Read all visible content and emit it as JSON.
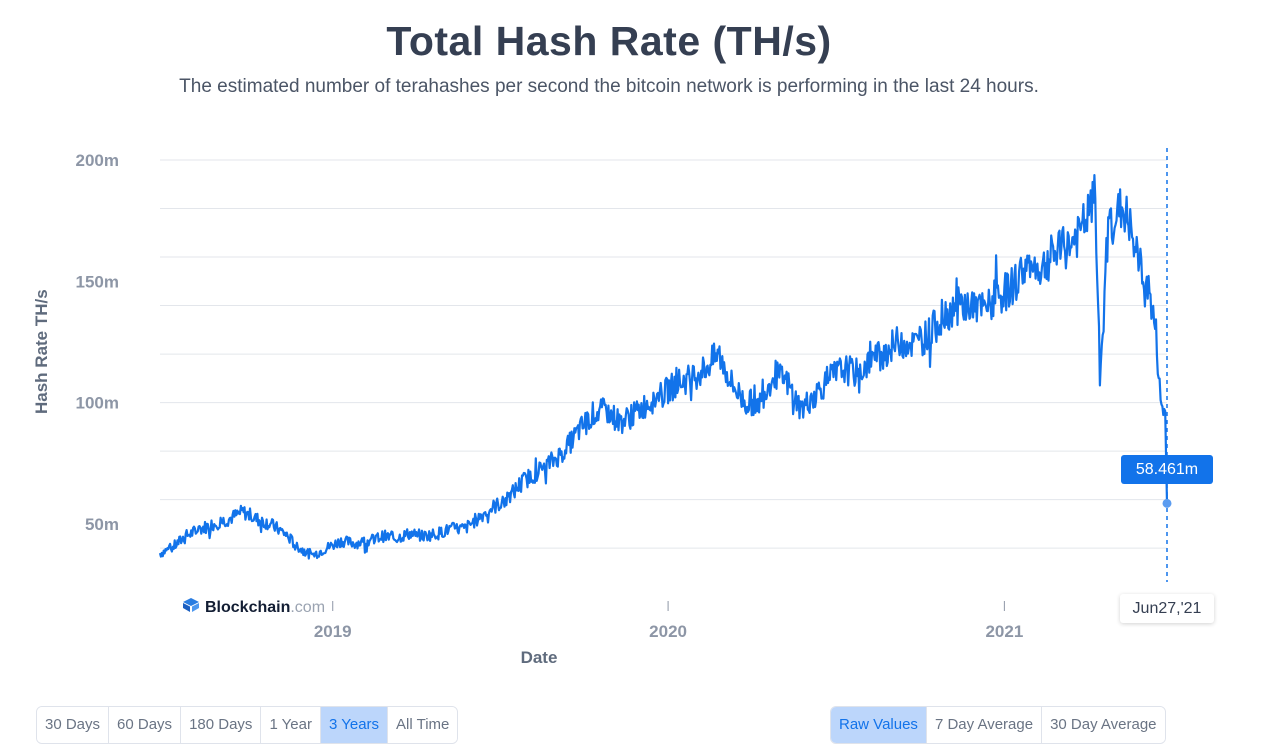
{
  "header": {
    "title": "Total Hash Rate (TH/s)",
    "subtitle": "The estimated number of terahashes per second the bitcoin network is performing in the last 24 hours."
  },
  "chart_data": {
    "type": "line",
    "title": "Total Hash Rate (TH/s)",
    "xlabel": "Date",
    "ylabel": "Hash Rate TH/s",
    "ylim": [
      31,
      200
    ],
    "xlim": [
      "2018-06-27",
      "2021-06-27"
    ],
    "yticks": [
      {
        "value": 50,
        "label": "50m"
      },
      {
        "value": 100,
        "label": "100m"
      },
      {
        "value": 150,
        "label": "150m"
      },
      {
        "value": 200,
        "label": "200m"
      }
    ],
    "xticks": [
      {
        "date": "2019-01-01",
        "label": "2019"
      },
      {
        "date": "2020-01-01",
        "label": "2020"
      },
      {
        "date": "2021-01-01",
        "label": "2021"
      }
    ],
    "grid": true,
    "color": "#1273ea",
    "series": [
      {
        "x": [
          "2018-06-27",
          "2018-07-10",
          "2018-07-25",
          "2018-08-10",
          "2018-08-25",
          "2018-09-10",
          "2018-09-25",
          "2018-10-10",
          "2018-10-25",
          "2018-11-10",
          "2018-11-25",
          "2018-12-10",
          "2018-12-25",
          "2019-01-10",
          "2019-01-25",
          "2019-02-10",
          "2019-02-25",
          "2019-03-10",
          "2019-03-25",
          "2019-04-10",
          "2019-04-25",
          "2019-05-10",
          "2019-05-25",
          "2019-06-10",
          "2019-06-25",
          "2019-07-10",
          "2019-07-25",
          "2019-08-10",
          "2019-08-25",
          "2019-09-10",
          "2019-09-25",
          "2019-10-10",
          "2019-10-25",
          "2019-11-10",
          "2019-11-25",
          "2019-12-10",
          "2019-12-25",
          "2020-01-10",
          "2020-01-25",
          "2020-02-10",
          "2020-02-25",
          "2020-03-10",
          "2020-03-25",
          "2020-04-10",
          "2020-04-25",
          "2020-05-10",
          "2020-05-25",
          "2020-06-10",
          "2020-06-25",
          "2020-07-10",
          "2020-07-25",
          "2020-08-10",
          "2020-08-25",
          "2020-09-10",
          "2020-09-25",
          "2020-10-10",
          "2020-10-25",
          "2020-11-10",
          "2020-11-25",
          "2020-12-10",
          "2020-12-25",
          "2021-01-10",
          "2021-01-25",
          "2021-02-10",
          "2021-02-25",
          "2021-03-10",
          "2021-03-25",
          "2021-04-10",
          "2021-04-15",
          "2021-04-25",
          "2021-05-10",
          "2021-05-20",
          "2021-05-25",
          "2021-06-05",
          "2021-06-10",
          "2021-06-15",
          "2021-06-20",
          "2021-06-25",
          "2021-06-27"
        ],
        "values": [
          38,
          40,
          45,
          48,
          50,
          52,
          55,
          52,
          50,
          46,
          40,
          37,
          40,
          43,
          42,
          43,
          45,
          44,
          46,
          45,
          46,
          48,
          48,
          53,
          57,
          60,
          67,
          71,
          75,
          80,
          88,
          95,
          97,
          92,
          95,
          100,
          103,
          108,
          110,
          114,
          120,
          108,
          100,
          100,
          112,
          108,
          97,
          104,
          110,
          114,
          112,
          118,
          121,
          126,
          124,
          128,
          135,
          140,
          140,
          138,
          143,
          148,
          157,
          155,
          162,
          164,
          170,
          185,
          110,
          175,
          180,
          170,
          160,
          150,
          140,
          128,
          100,
          95,
          58.461
        ]
      }
    ],
    "highlight": {
      "date_label": "Jun27,'21",
      "value_label": "58.461m"
    }
  },
  "branding": {
    "logo_main": "Blockchain",
    "logo_suffix": ".com",
    "logo_icon": "blockchain-logo-icon"
  },
  "controls": {
    "range_buttons": [
      {
        "label": "30 Days",
        "active": false
      },
      {
        "label": "60 Days",
        "active": false
      },
      {
        "label": "180 Days",
        "active": false
      },
      {
        "label": "1 Year",
        "active": false
      },
      {
        "label": "3 Years",
        "active": true
      },
      {
        "label": "All Time",
        "active": false
      }
    ],
    "average_buttons": [
      {
        "label": "Raw Values",
        "active": true
      },
      {
        "label": "7 Day Average",
        "active": false
      },
      {
        "label": "30 Day Average",
        "active": false
      }
    ]
  },
  "colors": {
    "accent": "#1273ea",
    "active_button_bg": "#bcd6fb",
    "grid": "#e3e6eb",
    "text_dark": "#353f52"
  }
}
